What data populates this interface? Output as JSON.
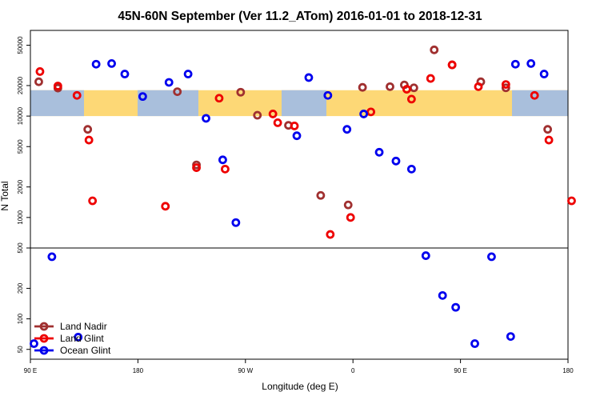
{
  "chart_data": {
    "type": "scatter",
    "title": "45N-60N September (Ver 11.2_ATom)   2016-01-01 to 2018-12-31",
    "xlabel": "Longitude (deg E)",
    "ylabel": "N Total",
    "x_ticks": [
      {
        "value": 90,
        "label": "90 E"
      },
      {
        "value": 180,
        "label": "180"
      },
      {
        "value": 270,
        "label": "90 W"
      },
      {
        "value": 360,
        "label": "0"
      },
      {
        "value": 450,
        "label": "90 E"
      },
      {
        "value": 540,
        "label": "180"
      }
    ],
    "xlim": [
      90,
      540
    ],
    "y_scale": "log",
    "ylim": [
      40,
      70000
    ],
    "y_ticks": [
      "50",
      "100",
      "200",
      "500",
      "1000",
      "2000",
      "5000",
      "10000",
      "20000",
      "50000"
    ],
    "map_band": {
      "y_range": [
        10000,
        18000
      ],
      "land_color": "#fdd876",
      "ocean_color": "#a9bfdc"
    },
    "legend": {
      "position": "bottom-left"
    },
    "series": [
      {
        "name": "Land Nadir",
        "color": "#a03030",
        "points": [
          [
            97,
            21800
          ],
          [
            113,
            18900
          ],
          [
            138,
            7400
          ],
          [
            213,
            17400
          ],
          [
            229,
            3300
          ],
          [
            266,
            17200
          ],
          [
            280,
            10200
          ],
          [
            306,
            8100
          ],
          [
            333,
            1650
          ],
          [
            356,
            1330
          ],
          [
            368,
            19200
          ],
          [
            391,
            19500
          ],
          [
            403,
            20300
          ],
          [
            411,
            19000
          ],
          [
            428,
            45000
          ],
          [
            443,
            32000
          ],
          [
            467,
            21800
          ],
          [
            488,
            19000
          ],
          [
            523,
            7400
          ]
        ]
      },
      {
        "name": "Land Glint",
        "color": "#ee0000",
        "points": [
          [
            98,
            27500
          ],
          [
            113,
            19800
          ],
          [
            129,
            16000
          ],
          [
            139,
            5800
          ],
          [
            142,
            1460
          ],
          [
            203,
            1290
          ],
          [
            248,
            15000
          ],
          [
            229,
            3100
          ],
          [
            253,
            3000
          ],
          [
            293,
            10500
          ],
          [
            297,
            8600
          ],
          [
            311,
            8000
          ],
          [
            341,
            680
          ],
          [
            358,
            1000
          ],
          [
            375,
            11000
          ],
          [
            405,
            18400
          ],
          [
            409,
            14700
          ],
          [
            425,
            23500
          ],
          [
            443,
            32000
          ],
          [
            465,
            19500
          ],
          [
            488,
            20500
          ],
          [
            512,
            16000
          ],
          [
            524,
            5800
          ],
          [
            543,
            1460
          ]
        ]
      },
      {
        "name": "Ocean Glint",
        "color": "#0000ee",
        "points": [
          [
            93,
            57
          ],
          [
            108,
            410
          ],
          [
            130,
            66
          ],
          [
            145,
            32500
          ],
          [
            158,
            33000
          ],
          [
            169,
            26000
          ],
          [
            184,
            15600
          ],
          [
            206,
            21500
          ],
          [
            222,
            26000
          ],
          [
            237,
            9500
          ],
          [
            251,
            3700
          ],
          [
            262,
            890
          ],
          [
            313,
            6400
          ],
          [
            323,
            24000
          ],
          [
            339,
            16000
          ],
          [
            355,
            7400
          ],
          [
            369,
            10500
          ],
          [
            382,
            4400
          ],
          [
            396,
            3600
          ],
          [
            409,
            3000
          ],
          [
            421,
            420
          ],
          [
            435,
            170
          ],
          [
            446,
            130
          ],
          [
            462,
            57
          ],
          [
            476,
            410
          ],
          [
            492,
            67
          ],
          [
            496,
            32500
          ],
          [
            509,
            33000
          ],
          [
            520,
            26000
          ]
        ]
      }
    ]
  }
}
